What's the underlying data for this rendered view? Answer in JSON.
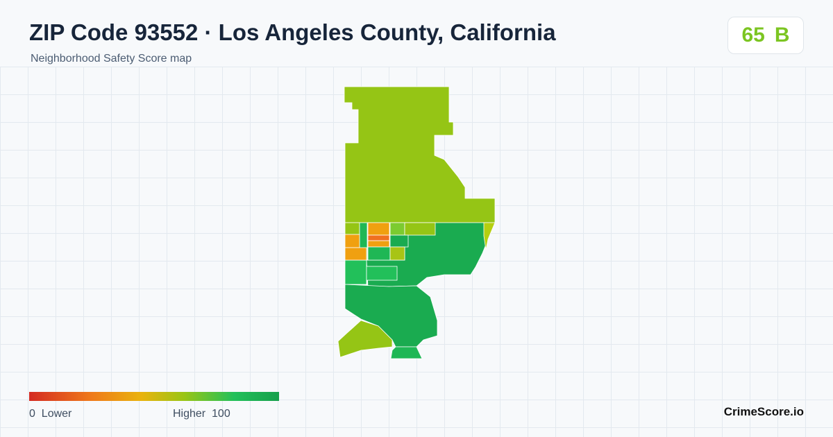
{
  "header": {
    "title": "ZIP Code 93552 · Los Angeles County, California",
    "subtitle": "Neighborhood Safety Score map"
  },
  "badge": {
    "score": 65,
    "grade": "B"
  },
  "legend": {
    "min": 0,
    "min_label": "Lower",
    "max_label": "Higher",
    "max": 100
  },
  "footer": {
    "brand": "CrimeScore.io"
  }
}
